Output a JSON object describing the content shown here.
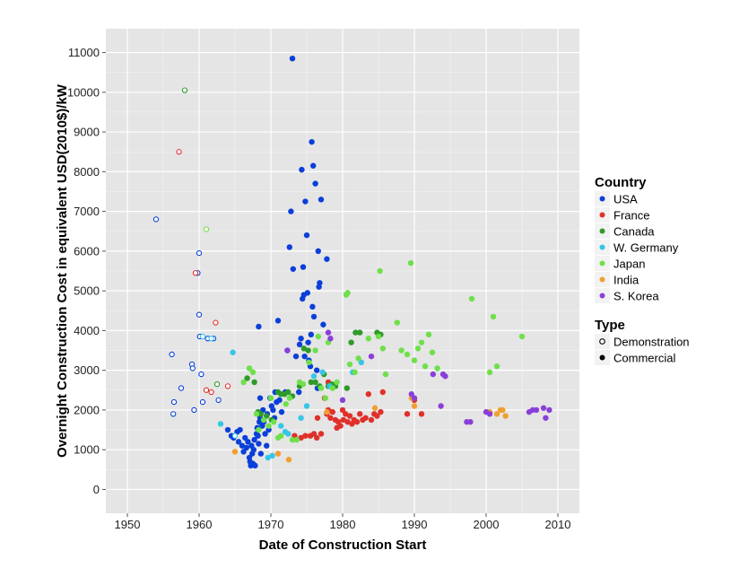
{
  "chart_data": {
    "type": "scatter",
    "title": "",
    "xlabel": "Date of Construction Start",
    "ylabel": "Overnight Construction Cost in equivalent USD(2010$)/kW",
    "xlim": [
      1947,
      2013
    ],
    "ylim": [
      -600,
      11600
    ],
    "xticks": [
      1950,
      1960,
      1970,
      1980,
      1990,
      2000,
      2010
    ],
    "yticks": [
      0,
      1000,
      2000,
      3000,
      4000,
      5000,
      6000,
      7000,
      8000,
      9000,
      10000,
      11000
    ],
    "grid": true,
    "legend_placement": "right",
    "legend": {
      "country_title": "Country",
      "type_title": "Type",
      "type_entries": [
        {
          "name": "Demonstration",
          "style": "hollow"
        },
        {
          "name": "Commercial",
          "style": "filled"
        }
      ]
    },
    "series": [
      {
        "name": "USA",
        "color": "#0a3fd9",
        "demonstration": [
          [
            1954,
            6800
          ],
          [
            1956.2,
            3400
          ],
          [
            1956.4,
            1900
          ],
          [
            1956.5,
            2200
          ],
          [
            1957.5,
            2550
          ],
          [
            1959,
            3150
          ],
          [
            1959.1,
            3050
          ],
          [
            1959.3,
            2000
          ],
          [
            1959.8,
            5450
          ],
          [
            1960,
            5950
          ],
          [
            1960,
            4400
          ],
          [
            1960.1,
            3850
          ],
          [
            1960.3,
            2900
          ],
          [
            1960.5,
            2200
          ],
          [
            1961.2,
            3800
          ],
          [
            1962,
            3800
          ],
          [
            1962.7,
            2250
          ]
        ],
        "commercial": [
          [
            1964,
            1500
          ],
          [
            1964.5,
            1350
          ],
          [
            1964.8,
            1300
          ],
          [
            1965.3,
            1450
          ],
          [
            1965.5,
            1200
          ],
          [
            1965.7,
            1500
          ],
          [
            1966,
            1100
          ],
          [
            1966.2,
            950
          ],
          [
            1966.4,
            1300
          ],
          [
            1966.6,
            1050
          ],
          [
            1966.8,
            1200
          ],
          [
            1967,
            800
          ],
          [
            1967.1,
            700
          ],
          [
            1967.2,
            600
          ],
          [
            1967.3,
            1100
          ],
          [
            1967.4,
            900
          ],
          [
            1967.5,
            650
          ],
          [
            1967.6,
            1000
          ],
          [
            1967.7,
            1250
          ],
          [
            1967.8,
            600
          ],
          [
            1968,
            1400
          ],
          [
            1968.1,
            1550
          ],
          [
            1968.2,
            1350
          ],
          [
            1968.3,
            1150
          ],
          [
            1968.4,
            1700
          ],
          [
            1968.5,
            1800
          ],
          [
            1968.6,
            900
          ],
          [
            1968.8,
            1600
          ],
          [
            1968.9,
            2000
          ],
          [
            1969,
            1700
          ],
          [
            1969.2,
            1400
          ],
          [
            1969.4,
            1100
          ],
          [
            1969.5,
            1900
          ],
          [
            1969.7,
            1500
          ],
          [
            1969.9,
            2300
          ],
          [
            1970.1,
            2100
          ],
          [
            1970.3,
            2000
          ],
          [
            1970.5,
            1800
          ],
          [
            1970.6,
            2450
          ],
          [
            1970.8,
            2200
          ],
          [
            1968.3,
            4100
          ],
          [
            1968.5,
            2300
          ],
          [
            1971,
            4250
          ],
          [
            1971.2,
            2250
          ],
          [
            1971.5,
            1950
          ],
          [
            1972,
            2450
          ],
          [
            1972.3,
            3500
          ],
          [
            1972.6,
            6100
          ],
          [
            1972.8,
            7000
          ],
          [
            1973,
            10850
          ],
          [
            1973.1,
            5550
          ],
          [
            1973.5,
            3350
          ],
          [
            1973.9,
            2450
          ],
          [
            1974,
            3650
          ],
          [
            1974.2,
            3800
          ],
          [
            1974.3,
            8050
          ],
          [
            1974.4,
            4800
          ],
          [
            1974.5,
            5600
          ],
          [
            1974.6,
            4900
          ],
          [
            1974.7,
            3350
          ],
          [
            1974.8,
            7250
          ],
          [
            1975,
            6400
          ],
          [
            1975.1,
            4950
          ],
          [
            1975.2,
            3700
          ],
          [
            1975.3,
            3250
          ],
          [
            1975.5,
            3100
          ],
          [
            1975.6,
            3900
          ],
          [
            1975.7,
            8750
          ],
          [
            1975.8,
            4600
          ],
          [
            1975.9,
            8150
          ],
          [
            1976,
            4350
          ],
          [
            1976.2,
            7700
          ],
          [
            1976.4,
            3000
          ],
          [
            1976.5,
            2550
          ],
          [
            1976.6,
            6000
          ],
          [
            1976.7,
            5100
          ],
          [
            1976.8,
            5200
          ],
          [
            1977,
            7300
          ],
          [
            1977.3,
            4150
          ],
          [
            1977.8,
            5800
          ]
        ]
      },
      {
        "name": "France",
        "color": "#e0302a",
        "demonstration": [
          [
            1957.2,
            8500
          ],
          [
            1959.5,
            5450
          ],
          [
            1961,
            2500
          ],
          [
            1961.7,
            2450
          ],
          [
            1962.3,
            4200
          ],
          [
            1964,
            2600
          ]
        ],
        "commercial": [
          [
            1973.3,
            1350
          ],
          [
            1974.2,
            1300
          ],
          [
            1974.8,
            1350
          ],
          [
            1975.5,
            1350
          ],
          [
            1976,
            1400
          ],
          [
            1976.4,
            1300
          ],
          [
            1977,
            1400
          ],
          [
            1977.8,
            1900
          ],
          [
            1978,
            2000
          ],
          [
            1978.3,
            1800
          ],
          [
            1978.6,
            1950
          ],
          [
            1979,
            1750
          ],
          [
            1979.2,
            1550
          ],
          [
            1979.4,
            1700
          ],
          [
            1979.7,
            1600
          ],
          [
            1980,
            2000
          ],
          [
            1980.1,
            1750
          ],
          [
            1980.4,
            1900
          ],
          [
            1980.7,
            1700
          ],
          [
            1981,
            1850
          ],
          [
            1981.3,
            1650
          ],
          [
            1981.6,
            1750
          ],
          [
            1982,
            1700
          ],
          [
            1982.4,
            1900
          ],
          [
            1982.8,
            1750
          ],
          [
            1983.2,
            1800
          ],
          [
            1983.6,
            2400
          ],
          [
            1984,
            1750
          ],
          [
            1984.4,
            1900
          ],
          [
            1984.8,
            1850
          ],
          [
            1985.3,
            1950
          ],
          [
            1985.6,
            2450
          ],
          [
            1989,
            1900
          ],
          [
            1990,
            2250
          ],
          [
            1991,
            1900
          ],
          [
            1976.5,
            1800
          ],
          [
            1977.5,
            2300
          ],
          [
            1978,
            2700
          ]
        ]
      },
      {
        "name": "Canada",
        "color": "#2e9a2a",
        "demonstration": [
          [
            1958,
            10050
          ],
          [
            1962.5,
            2650
          ]
        ],
        "commercial": [
          [
            1966.7,
            2800
          ],
          [
            1967.7,
            2700
          ],
          [
            1968.2,
            1950
          ],
          [
            1968.6,
            1900
          ],
          [
            1969.4,
            1850
          ],
          [
            1970.1,
            1750
          ],
          [
            1971,
            2450
          ],
          [
            1971.4,
            2400
          ],
          [
            1971.9,
            2400
          ],
          [
            1972.4,
            2450
          ],
          [
            1973,
            2350
          ],
          [
            1974,
            2600
          ],
          [
            1974.6,
            3550
          ],
          [
            1975.2,
            3500
          ],
          [
            1975.6,
            2700
          ],
          [
            1976.2,
            2700
          ],
          [
            1976.8,
            2600
          ],
          [
            1977.4,
            2900
          ],
          [
            1978,
            2600
          ],
          [
            1978.5,
            2650
          ],
          [
            1979,
            2600
          ],
          [
            1980.6,
            2550
          ],
          [
            1981.2,
            3700
          ],
          [
            1981.8,
            3950
          ],
          [
            1982.4,
            3950
          ],
          [
            1984.8,
            3950
          ],
          [
            1985.3,
            3900
          ]
        ]
      },
      {
        "name": "W. Germany",
        "color": "#36c5e8",
        "demonstration": [
          [
            1960.5,
            3850
          ],
          [
            1961.7,
            3800
          ],
          [
            1965,
            1350
          ]
        ],
        "commercial": [
          [
            1963,
            1650
          ],
          [
            1964.7,
            3450
          ],
          [
            1969.6,
            800
          ],
          [
            1970.2,
            850
          ],
          [
            1971.4,
            1600
          ],
          [
            1972,
            1450
          ],
          [
            1972.4,
            1400
          ],
          [
            1974.2,
            1800
          ],
          [
            1975,
            2100
          ],
          [
            1976,
            2850
          ],
          [
            1977.2,
            2950
          ],
          [
            1978.2,
            2600
          ],
          [
            1981.4,
            2950
          ],
          [
            1982.6,
            3200
          ]
        ]
      },
      {
        "name": "Japan",
        "color": "#6ee04a",
        "demonstration": [
          [
            1961,
            6550
          ]
        ],
        "commercial": [
          [
            1966.2,
            2700
          ],
          [
            1967,
            3050
          ],
          [
            1967.5,
            2950
          ],
          [
            1968,
            1900
          ],
          [
            1968.3,
            1500
          ],
          [
            1969,
            1750
          ],
          [
            1969.7,
            1600
          ],
          [
            1970,
            2300
          ],
          [
            1970.4,
            1700
          ],
          [
            1971,
            1300
          ],
          [
            1971.4,
            1350
          ],
          [
            1972.1,
            2150
          ],
          [
            1972.6,
            2300
          ],
          [
            1973,
            1250
          ],
          [
            1973.6,
            1250
          ],
          [
            1974,
            2700
          ],
          [
            1974.5,
            2650
          ],
          [
            1975.3,
            3200
          ],
          [
            1976.2,
            3500
          ],
          [
            1976.6,
            3850
          ],
          [
            1977,
            2550
          ],
          [
            1977.6,
            2300
          ],
          [
            1978,
            3700
          ],
          [
            1978.6,
            2550
          ],
          [
            1979.2,
            2700
          ],
          [
            1980.5,
            4900
          ],
          [
            1980.7,
            4950
          ],
          [
            1981,
            3150
          ],
          [
            1981.7,
            2950
          ],
          [
            1982.2,
            3300
          ],
          [
            1983.6,
            3800
          ],
          [
            1985,
            3850
          ],
          [
            1985.2,
            5500
          ],
          [
            1985.6,
            3550
          ],
          [
            1986,
            2900
          ],
          [
            1987.6,
            4200
          ],
          [
            1988.2,
            3500
          ],
          [
            1989,
            3400
          ],
          [
            1989.5,
            5700
          ],
          [
            1990,
            3250
          ],
          [
            1990.5,
            3550
          ],
          [
            1991,
            3700
          ],
          [
            1991.5,
            3100
          ],
          [
            1992,
            3900
          ],
          [
            1992.5,
            3450
          ],
          [
            1993.2,
            3050
          ],
          [
            1998,
            4800
          ],
          [
            2000.5,
            2950
          ],
          [
            2001,
            4350
          ],
          [
            2001.5,
            3100
          ],
          [
            2005,
            3850
          ]
        ]
      },
      {
        "name": "India",
        "color": "#f0a030",
        "demonstration": [],
        "commercial": [
          [
            1965,
            950
          ],
          [
            1971,
            900
          ],
          [
            1972.5,
            750
          ],
          [
            1977.8,
            1950
          ],
          [
            1984.5,
            2050
          ],
          [
            1989.6,
            2300
          ],
          [
            1990,
            2100
          ],
          [
            2000.5,
            1950
          ],
          [
            2001.5,
            1900
          ],
          [
            2002,
            2000
          ],
          [
            2002.3,
            2000
          ],
          [
            2002.7,
            1850
          ]
        ]
      },
      {
        "name": "S. Korea",
        "color": "#8a3fd9",
        "demonstration": [],
        "commercial": [
          [
            1972.3,
            3500
          ],
          [
            1978,
            3950
          ],
          [
            1978.3,
            3800
          ],
          [
            1980,
            2250
          ],
          [
            1984,
            3350
          ],
          [
            1989.6,
            2400
          ],
          [
            1990,
            2300
          ],
          [
            1992.6,
            2900
          ],
          [
            1993.7,
            2100
          ],
          [
            1994,
            2900
          ],
          [
            1994.3,
            2850
          ],
          [
            1997.3,
            1700
          ],
          [
            1997.8,
            1700
          ],
          [
            2000,
            1950
          ],
          [
            2000.5,
            1900
          ],
          [
            2006,
            1950
          ],
          [
            2006.5,
            2000
          ],
          [
            2007,
            2000
          ],
          [
            2008,
            2050
          ],
          [
            2008.3,
            1800
          ],
          [
            2008.8,
            2000
          ]
        ]
      }
    ]
  }
}
